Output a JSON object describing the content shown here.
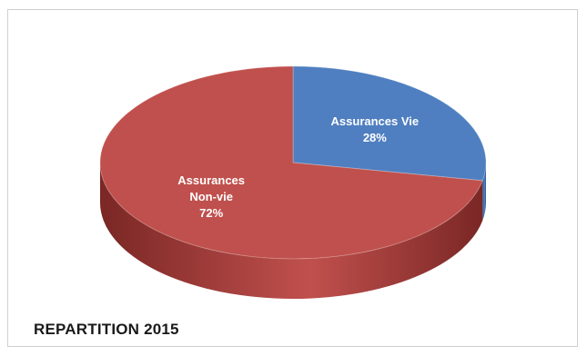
{
  "chart_data": {
    "type": "pie",
    "title": "",
    "style": "3d",
    "slices": [
      {
        "label_lines": [
          "Assurances Vie"
        ],
        "value_label": "28%",
        "value": 28,
        "color": "#4f7fc0",
        "side_color": "#2f5a92"
      },
      {
        "label_lines": [
          "Assurances",
          "Non-vie"
        ],
        "value_label": "72%",
        "value": 72,
        "color": "#c0504d",
        "side_color": "#7a2725"
      }
    ]
  },
  "footer": {
    "title": "REPARTITION 2015"
  }
}
